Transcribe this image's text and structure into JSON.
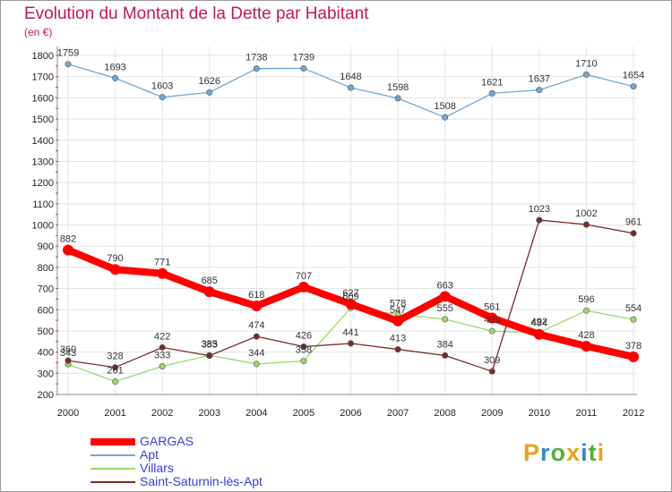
{
  "header": {
    "title": "Evolution du Montant de la Dette par Habitant",
    "subtitle": "(en €)"
  },
  "logo": {
    "letters": [
      "P",
      "r",
      "o",
      "x",
      "i",
      "t",
      "i"
    ],
    "colors": [
      "#e8a21b",
      "#2f88c8",
      "#5aac3a",
      "#e8a21b",
      "#2f88c8",
      "#5aac3a",
      "#e8a21b"
    ]
  },
  "chart_data": {
    "type": "line",
    "title": "Evolution du Montant de la Dette par Habitant",
    "subtitle": "(en €)",
    "x": [
      "2000",
      "2001",
      "2002",
      "2003",
      "2004",
      "2005",
      "2006",
      "2007",
      "2008",
      "2009",
      "2010",
      "2011",
      "2012"
    ],
    "ylim": [
      200,
      1800
    ],
    "yticks": [
      200,
      300,
      400,
      500,
      600,
      700,
      800,
      900,
      1000,
      1100,
      1200,
      1300,
      1400,
      1500,
      1600,
      1700,
      1800
    ],
    "grid": true,
    "legend_position": "bottom-left",
    "series": [
      {
        "name": "GARGAS",
        "color": "#ff0000",
        "values": [
          882,
          790,
          771,
          685,
          618,
          707,
          627,
          547,
          663,
          561,
          484,
          428,
          378
        ]
      },
      {
        "name": "Apt",
        "color": "#6fa7d6",
        "values": [
          1759,
          1693,
          1603,
          1626,
          1738,
          1739,
          1648,
          1598,
          1508,
          1621,
          1637,
          1710,
          1654
        ]
      },
      {
        "name": "Villars",
        "color": "#9bd86b",
        "values": [
          343,
          261,
          333,
          385,
          344,
          358,
          609,
          578,
          555,
          499,
          492,
          596,
          554
        ]
      },
      {
        "name": "Saint-Saturnin-lès-Apt",
        "color": "#7a2a2a",
        "values": [
          360,
          328,
          422,
          383,
          474,
          426,
          441,
          413,
          384,
          309,
          1023,
          1002,
          961
        ]
      }
    ]
  }
}
